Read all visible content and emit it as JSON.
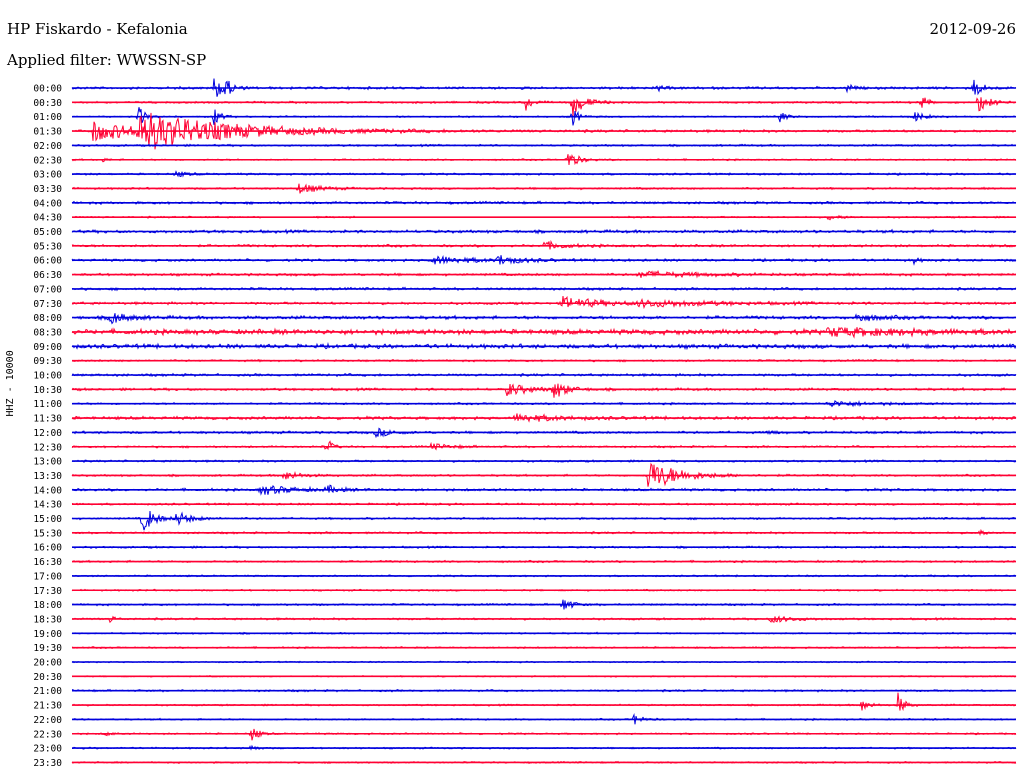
{
  "header": {
    "station": "HP Fiskardo - Kefalonia",
    "date": "2012-09-26",
    "filter": "Applied filter: WWSSN-SP",
    "channel": "HHZ - 10000"
  },
  "colors": {
    "even_row": "#0000dd",
    "odd_row": "#ff0033"
  },
  "chart_data": {
    "type": "line",
    "title": "HP Fiskardo - Kefalonia",
    "ylabel": "HHZ - 10000",
    "rows": [
      "00:00",
      "00:30",
      "01:00",
      "01:30",
      "02:00",
      "02:30",
      "03:00",
      "03:30",
      "04:00",
      "04:30",
      "05:00",
      "05:30",
      "06:00",
      "06:30",
      "07:00",
      "07:30",
      "08:00",
      "08:30",
      "09:00",
      "09:30",
      "10:00",
      "10:30",
      "11:00",
      "11:30",
      "12:00",
      "12:30",
      "13:00",
      "13:30",
      "14:00",
      "14:30",
      "15:00",
      "15:30",
      "16:00",
      "16:30",
      "17:00",
      "17:30",
      "18:00",
      "18:30",
      "19:00",
      "19:30",
      "20:00",
      "20:30",
      "21:00",
      "21:30",
      "22:00",
      "22:30",
      "23:00",
      "23:30"
    ],
    "noise": [
      1.5,
      1.2,
      1.0,
      1.5,
      1.2,
      1.0,
      1.2,
      1.2,
      1.5,
      1.0,
      1.8,
      1.5,
      1.5,
      1.5,
      1.5,
      1.5,
      2.0,
      3.0,
      2.5,
      1.2,
      1.5,
      1.5,
      1.2,
      1.8,
      1.5,
      1.2,
      1.2,
      1.2,
      1.5,
      1.2,
      1.2,
      1.2,
      1.2,
      1.2,
      1.0,
      1.0,
      1.2,
      1.2,
      1.0,
      1.0,
      0.8,
      0.8,
      1.2,
      1.0,
      1.0,
      1.0,
      1.0,
      1.0
    ],
    "events": [
      {
        "row": 0,
        "pos": 0.15,
        "amp": 12,
        "dur": 0.01
      },
      {
        "row": 0,
        "pos": 0.16,
        "amp": 14,
        "dur": 0.005
      },
      {
        "row": 0,
        "pos": 0.62,
        "amp": 4,
        "dur": 0.005
      },
      {
        "row": 0,
        "pos": 0.82,
        "amp": 5,
        "dur": 0.005
      },
      {
        "row": 0,
        "pos": 0.955,
        "amp": 10,
        "dur": 0.008
      },
      {
        "row": 1,
        "pos": 0.48,
        "amp": 10,
        "dur": 0.006
      },
      {
        "row": 1,
        "pos": 0.53,
        "amp": 14,
        "dur": 0.012
      },
      {
        "row": 1,
        "pos": 0.9,
        "amp": 8,
        "dur": 0.006
      },
      {
        "row": 1,
        "pos": 0.96,
        "amp": 10,
        "dur": 0.01
      },
      {
        "row": 2,
        "pos": 0.07,
        "amp": 12,
        "dur": 0.006
      },
      {
        "row": 2,
        "pos": 0.15,
        "amp": 10,
        "dur": 0.006
      },
      {
        "row": 2,
        "pos": 0.53,
        "amp": 10,
        "dur": 0.006
      },
      {
        "row": 2,
        "pos": 0.75,
        "amp": 6,
        "dur": 0.006
      },
      {
        "row": 2,
        "pos": 0.89,
        "amp": 6,
        "dur": 0.01
      },
      {
        "row": 3,
        "pos": 0.02,
        "amp": 10,
        "dur": 0.05
      },
      {
        "row": 3,
        "pos": 0.07,
        "amp": 18,
        "dur": 0.09
      },
      {
        "row": 5,
        "pos": 0.03,
        "amp": 3,
        "dur": 0.005
      },
      {
        "row": 5,
        "pos": 0.525,
        "amp": 9,
        "dur": 0.01
      },
      {
        "row": 6,
        "pos": 0.11,
        "amp": 3,
        "dur": 0.01
      },
      {
        "row": 7,
        "pos": 0.24,
        "amp": 5,
        "dur": 0.02
      },
      {
        "row": 9,
        "pos": 0.47,
        "amp": 6,
        "dur": 0.012
      },
      {
        "row": 9,
        "pos": 0.8,
        "amp": 3,
        "dur": 0.012
      },
      {
        "row": 11,
        "pos": 0.5,
        "amp": 4,
        "dur": 0.02
      },
      {
        "row": 12,
        "pos": 0.38,
        "amp": 4,
        "dur": 0.04
      },
      {
        "row": 12,
        "pos": 0.45,
        "amp": 5,
        "dur": 0.02
      },
      {
        "row": 12,
        "pos": 0.89,
        "amp": 5,
        "dur": 0.004
      },
      {
        "row": 13,
        "pos": 0.6,
        "amp": 3,
        "dur": 0.06
      },
      {
        "row": 15,
        "pos": 0.52,
        "amp": 6,
        "dur": 0.04
      },
      {
        "row": 15,
        "pos": 0.6,
        "amp": 3,
        "dur": 0.08
      },
      {
        "row": 16,
        "pos": 0.04,
        "amp": 7,
        "dur": 0.015
      },
      {
        "row": 16,
        "pos": 0.83,
        "amp": 4,
        "dur": 0.02
      },
      {
        "row": 17,
        "pos": 0.8,
        "amp": 4,
        "dur": 0.08
      },
      {
        "row": 21,
        "pos": 0.46,
        "amp": 7,
        "dur": 0.02
      },
      {
        "row": 21,
        "pos": 0.51,
        "amp": 10,
        "dur": 0.012
      },
      {
        "row": 22,
        "pos": 0.8,
        "amp": 3,
        "dur": 0.04
      },
      {
        "row": 23,
        "pos": 0.47,
        "amp": 4,
        "dur": 0.04
      },
      {
        "row": 24,
        "pos": 0.32,
        "amp": 5,
        "dur": 0.015
      },
      {
        "row": 24,
        "pos": 0.74,
        "amp": 3,
        "dur": 0.005
      },
      {
        "row": 25,
        "pos": 0.27,
        "amp": 9,
        "dur": 0.005
      },
      {
        "row": 25,
        "pos": 0.38,
        "amp": 3,
        "dur": 0.02
      },
      {
        "row": 27,
        "pos": 0.225,
        "amp": 5,
        "dur": 0.015
      },
      {
        "row": 27,
        "pos": 0.61,
        "amp": 16,
        "dur": 0.03
      },
      {
        "row": 28,
        "pos": 0.2,
        "amp": 5,
        "dur": 0.03
      },
      {
        "row": 28,
        "pos": 0.27,
        "amp": 4,
        "dur": 0.01
      },
      {
        "row": 30,
        "pos": 0.075,
        "amp": 16,
        "dur": 0.01
      },
      {
        "row": 30,
        "pos": 0.11,
        "amp": 7,
        "dur": 0.015
      },
      {
        "row": 31,
        "pos": 0.96,
        "amp": 4,
        "dur": 0.005
      },
      {
        "row": 36,
        "pos": 0.52,
        "amp": 8,
        "dur": 0.008
      },
      {
        "row": 37,
        "pos": 0.04,
        "amp": 4,
        "dur": 0.005
      },
      {
        "row": 37,
        "pos": 0.74,
        "amp": 4,
        "dur": 0.02
      },
      {
        "row": 43,
        "pos": 0.835,
        "amp": 7,
        "dur": 0.008
      },
      {
        "row": 43,
        "pos": 0.875,
        "amp": 12,
        "dur": 0.006
      },
      {
        "row": 44,
        "pos": 0.595,
        "amp": 6,
        "dur": 0.008
      },
      {
        "row": 45,
        "pos": 0.035,
        "amp": 3,
        "dur": 0.005
      },
      {
        "row": 45,
        "pos": 0.19,
        "amp": 10,
        "dur": 0.006
      },
      {
        "row": 46,
        "pos": 0.19,
        "amp": 5,
        "dur": 0.005
      }
    ],
    "gaps": [
      {
        "row": 9,
        "from": 0.205,
        "to": 0.255
      },
      {
        "row": 9,
        "from": 0.3,
        "to": 0.57
      }
    ]
  }
}
